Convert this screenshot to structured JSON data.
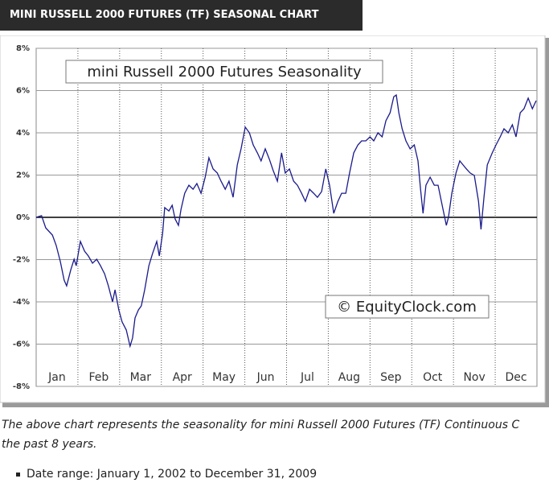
{
  "header": {
    "title": "MINI RUSSELL 2000 FUTURES (TF) SEASONAL CHART"
  },
  "chart_data": {
    "type": "line",
    "title": "mini Russell 2000 Futures Seasonality",
    "watermark": "© EquityClock.com",
    "color": "#1a1a8c",
    "xlim": [
      0,
      12
    ],
    "xticks": [
      {
        "value": 0.5,
        "label": "Jan"
      },
      {
        "value": 1.5,
        "label": "Feb"
      },
      {
        "value": 2.5,
        "label": "Mar"
      },
      {
        "value": 3.5,
        "label": "Apr"
      },
      {
        "value": 4.5,
        "label": "May"
      },
      {
        "value": 5.5,
        "label": "Jun"
      },
      {
        "value": 6.5,
        "label": "Jul"
      },
      {
        "value": 7.5,
        "label": "Aug"
      },
      {
        "value": 8.5,
        "label": "Sep"
      },
      {
        "value": 9.5,
        "label": "Oct"
      },
      {
        "value": 10.5,
        "label": "Nov"
      },
      {
        "value": 11.5,
        "label": "Dec"
      }
    ],
    "ylim": [
      -8,
      8
    ],
    "yticks": [
      {
        "value": 8,
        "label": "8%"
      },
      {
        "value": 6,
        "label": "6%"
      },
      {
        "value": 4,
        "label": "4%"
      },
      {
        "value": 2,
        "label": "2%"
      },
      {
        "value": 0,
        "label": "0%"
      },
      {
        "value": -2,
        "label": "-2%"
      },
      {
        "value": -4,
        "label": "-4%"
      },
      {
        "value": -6,
        "label": "-6%"
      },
      {
        "value": -8,
        "label": "-8%"
      }
    ],
    "grid": true,
    "x": [
      0,
      0.13,
      0.23,
      0.39,
      0.48,
      0.58,
      0.67,
      0.73,
      0.83,
      0.91,
      0.96,
      1.06,
      1.16,
      1.25,
      1.35,
      1.45,
      1.54,
      1.64,
      1.73,
      1.83,
      1.89,
      1.98,
      2.06,
      2.16,
      2.25,
      2.31,
      2.37,
      2.45,
      2.52,
      2.6,
      2.7,
      2.79,
      2.89,
      2.95,
      3.03,
      3.08,
      3.18,
      3.26,
      3.33,
      3.41,
      3.47,
      3.56,
      3.66,
      3.76,
      3.85,
      3.95,
      4.05,
      4.14,
      4.24,
      4.34,
      4.43,
      4.53,
      4.62,
      4.72,
      4.82,
      4.91,
      5.01,
      5.11,
      5.2,
      5.3,
      5.39,
      5.49,
      5.59,
      5.68,
      5.78,
      5.88,
      5.97,
      6.07,
      6.17,
      6.26,
      6.36,
      6.45,
      6.55,
      6.65,
      6.74,
      6.84,
      6.94,
      7.03,
      7.13,
      7.23,
      7.32,
      7.42,
      7.51,
      7.61,
      7.71,
      7.8,
      7.9,
      8.0,
      8.09,
      8.19,
      8.29,
      8.38,
      8.48,
      8.57,
      8.63,
      8.69,
      8.77,
      8.86,
      8.96,
      9.06,
      9.15,
      9.21,
      9.27,
      9.34,
      9.44,
      9.54,
      9.63,
      9.73,
      9.83,
      9.88,
      9.96,
      10.06,
      10.15,
      10.23,
      10.31,
      10.4,
      10.5,
      10.6,
      10.66,
      10.73,
      10.81,
      10.93,
      11.02,
      11.12,
      11.21,
      11.31,
      11.41,
      11.5,
      11.6,
      11.69,
      11.79,
      11.89,
      11.98
    ],
    "values": [
      0,
      0.08,
      -0.5,
      -0.84,
      -1.33,
      -2.1,
      -2.97,
      -3.24,
      -2.48,
      -1.98,
      -2.29,
      -1.14,
      -1.6,
      -1.83,
      -2.17,
      -1.98,
      -2.29,
      -2.67,
      -3.24,
      -4.0,
      -3.43,
      -4.38,
      -4.95,
      -5.33,
      -6.1,
      -5.71,
      -4.76,
      -4.38,
      -4.19,
      -3.43,
      -2.29,
      -1.71,
      -1.14,
      -1.83,
      -0.76,
      0.46,
      0.3,
      0.57,
      -0.08,
      -0.38,
      0.38,
      1.14,
      1.52,
      1.33,
      1.6,
      1.14,
      1.9,
      2.82,
      2.29,
      2.1,
      1.71,
      1.33,
      1.71,
      0.95,
      2.48,
      3.24,
      4.27,
      4.0,
      3.43,
      3.05,
      2.67,
      3.24,
      2.74,
      2.21,
      1.71,
      3.05,
      2.1,
      2.29,
      1.71,
      1.52,
      1.14,
      0.76,
      1.33,
      1.14,
      0.95,
      1.22,
      2.29,
      1.52,
      0.19,
      0.76,
      1.14,
      1.14,
      2.1,
      3.05,
      3.43,
      3.62,
      3.62,
      3.81,
      3.62,
      4.0,
      3.81,
      4.57,
      4.95,
      5.71,
      5.79,
      4.95,
      4.19,
      3.62,
      3.24,
      3.43,
      2.67,
      1.33,
      0.19,
      1.52,
      1.9,
      1.52,
      1.52,
      0.57,
      -0.38,
      0,
      1.14,
      2.1,
      2.67,
      2.48,
      2.29,
      2.1,
      1.98,
      0.76,
      -0.57,
      0.95,
      2.48,
      3.05,
      3.43,
      3.81,
      4.19,
      4.0,
      4.38,
      3.81,
      4.95,
      5.14,
      5.64,
      5.14,
      5.52
    ]
  },
  "description": {
    "line1": "The above chart represents the seasonality for mini Russell 2000 Futures (TF) Continuous C",
    "line2": "the past 8 years.",
    "bullets": [
      "Date range: January 1, 2002 to December 31, 2009"
    ]
  }
}
